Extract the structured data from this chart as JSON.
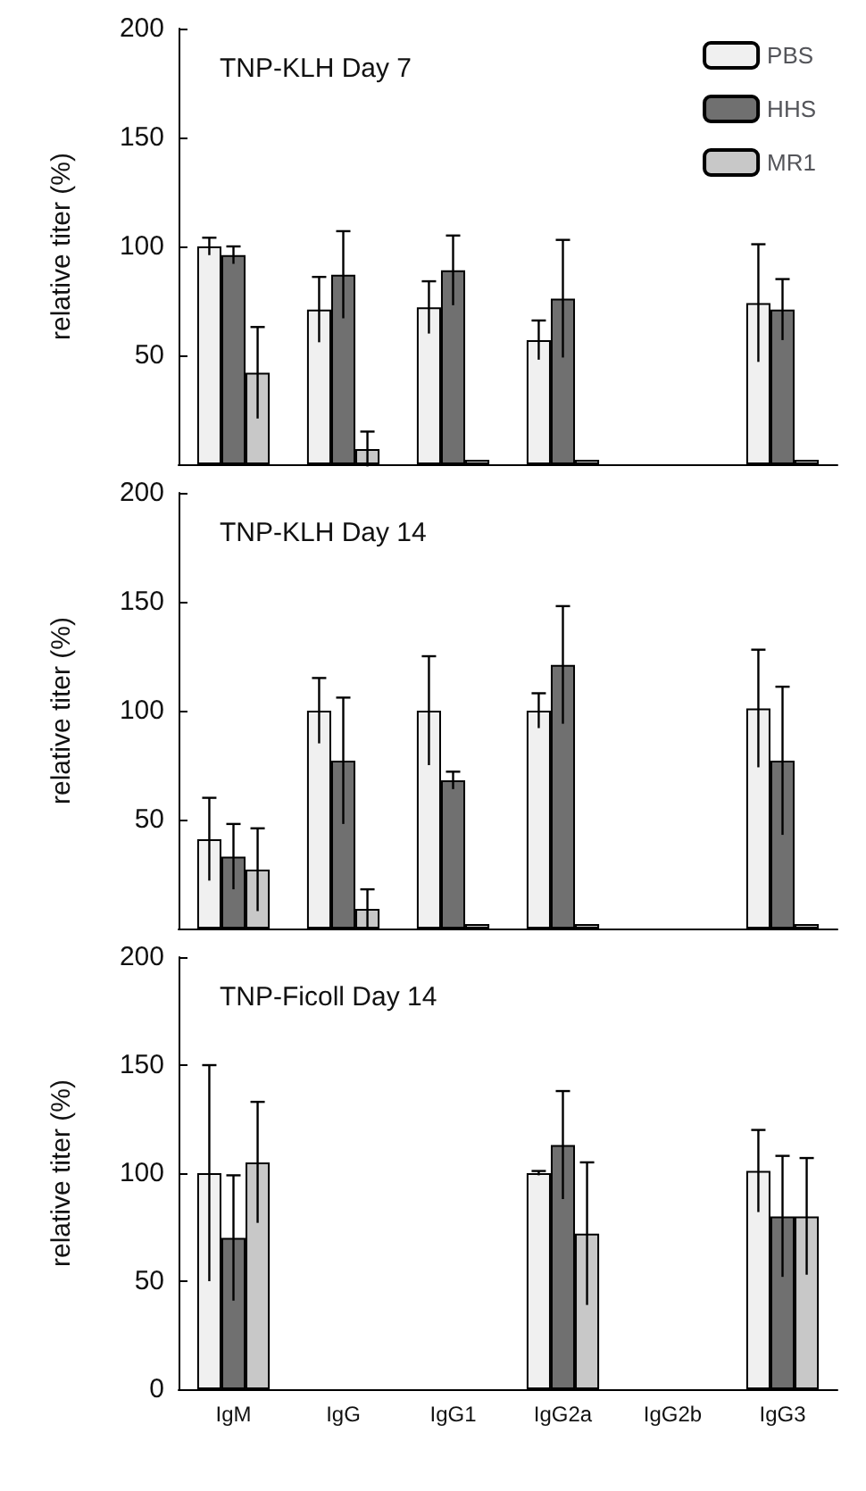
{
  "chart_data": [
    {
      "type": "bar",
      "title": "TNP-KLH Day 7",
      "ylabel": "relative titer (%)",
      "categories": [
        null,
        null,
        null,
        null,
        null,
        null
      ],
      "ylim": [
        0,
        200
      ],
      "yticks": [
        50,
        100,
        150,
        200
      ],
      "tick_labels": "y",
      "legend": "top right",
      "grid": false,
      "series": [
        {
          "name": "PBS",
          "color": "#f0f0f0",
          "values": [
            100,
            71,
            72,
            57,
            null,
            74
          ],
          "errors": [
            4,
            15,
            12,
            9,
            null,
            27
          ]
        },
        {
          "name": "HHS",
          "color": "#707070",
          "values": [
            96,
            87,
            89,
            76,
            null,
            71
          ],
          "errors": [
            4,
            20,
            16,
            27,
            null,
            14
          ]
        },
        {
          "name": "MR1",
          "color": "#c8c8c8",
          "values": [
            42,
            7,
            2,
            2,
            null,
            2
          ],
          "errors": [
            21,
            8,
            null,
            null,
            null,
            null
          ]
        }
      ]
    },
    {
      "type": "bar",
      "title": "TNP-KLH Day 14",
      "ylabel": "relative titer (%)",
      "categories": [
        null,
        null,
        null,
        null,
        null,
        null
      ],
      "ylim": [
        0,
        200
      ],
      "yticks": [
        50,
        100,
        150,
        200
      ],
      "tick_labels": "y",
      "legend": false,
      "grid": false,
      "series": [
        {
          "color": "#f0f0f0",
          "values": [
            41,
            100,
            100,
            100,
            null,
            101
          ],
          "errors": [
            19,
            15,
            25,
            8,
            null,
            27
          ]
        },
        {
          "color": "#707070",
          "values": [
            33,
            77,
            68,
            121,
            null,
            77
          ],
          "errors": [
            15,
            29,
            4,
            27,
            null,
            34
          ]
        },
        {
          "color": "#c8c8c8",
          "values": [
            27,
            9,
            2,
            2,
            null,
            2
          ],
          "errors": [
            19,
            9,
            null,
            null,
            null,
            null
          ]
        }
      ]
    },
    {
      "type": "bar",
      "title": "TNP-Ficoll Day 14",
      "ylabel": "relative titer (%)",
      "categories": [
        "IgM",
        "IgG",
        "IgG1",
        "IgG2a",
        "IgG2b",
        "IgG3"
      ],
      "ylim": [
        0,
        200
      ],
      "yticks": [
        0,
        50,
        100,
        150,
        200
      ],
      "legend": false,
      "grid": false,
      "series": [
        {
          "color": "#f0f0f0",
          "values": [
            100,
            null,
            null,
            100,
            null,
            101
          ],
          "errors": [
            50,
            null,
            null,
            1,
            null,
            19
          ]
        },
        {
          "color": "#707070",
          "values": [
            70,
            null,
            null,
            113,
            null,
            80
          ],
          "errors": [
            29,
            null,
            null,
            25,
            null,
            28
          ]
        },
        {
          "color": "#c8c8c8",
          "values": [
            105,
            null,
            null,
            72,
            null,
            80
          ],
          "errors": [
            28,
            null,
            null,
            33,
            null,
            27
          ]
        }
      ]
    }
  ]
}
